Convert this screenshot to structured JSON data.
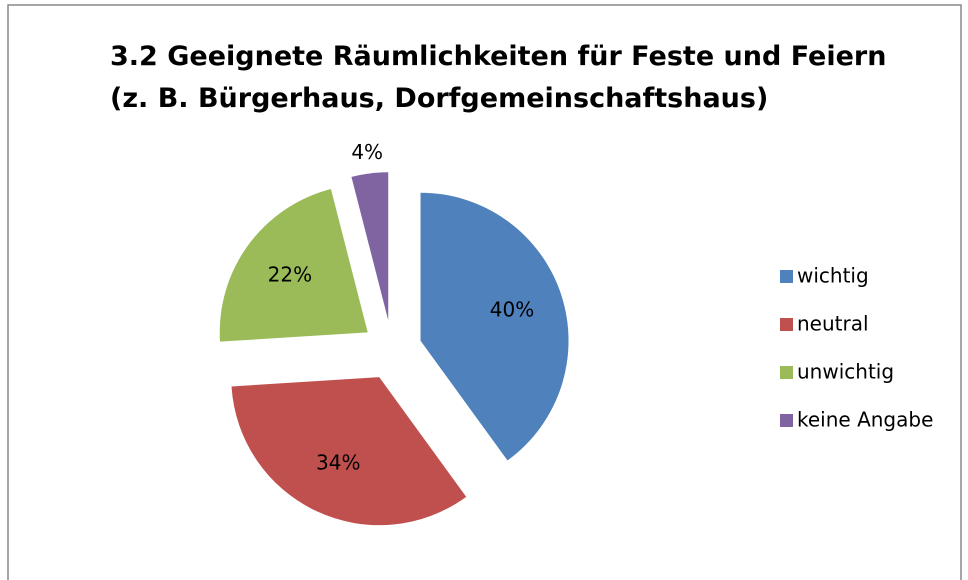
{
  "chart_data": {
    "type": "pie",
    "title": "3.2 Geeignete Räumlichkeiten für Feste und Feiern (z. B. Bürgerhaus, Dorfgemeinschaftshaus)",
    "categories": [
      "wichtig",
      "neutral",
      "unwichtig",
      "keine Angabe"
    ],
    "values": [
      40,
      34,
      22,
      4
    ],
    "value_labels": [
      "40%",
      "34%",
      "22%",
      "4%"
    ],
    "colors": [
      "#4f81bd",
      "#c0504d",
      "#9bbb59",
      "#8064a2"
    ],
    "legend": "right"
  }
}
